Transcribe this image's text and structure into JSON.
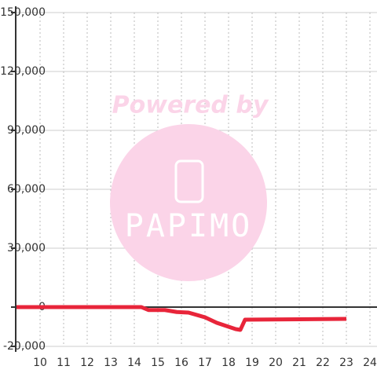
{
  "chart_data": {
    "type": "line",
    "x": [
      9,
      14.3,
      14.6,
      15.3,
      15.8,
      16.3,
      17,
      17.5,
      18,
      18.3,
      18.5,
      18.7,
      23
    ],
    "series": [
      {
        "color": "#e8253a",
        "values": [
          0,
          0,
          -1500,
          -1500,
          -2500,
          -2800,
          -5200,
          -8000,
          -10000,
          -11200,
          -11600,
          -6400,
          -6000
        ]
      }
    ],
    "xlim": [
      9,
      24.3
    ],
    "xticks": [
      10,
      11,
      12,
      13,
      14,
      15,
      16,
      17,
      18,
      19,
      20,
      21,
      22,
      23,
      24
    ],
    "ylim": [
      -20000,
      150000
    ],
    "yticks": [
      {
        "value": -20000,
        "label": "-20,000"
      },
      0,
      {
        "value": 30000,
        "label": "30,000"
      },
      {
        "value": 60000,
        "label": "60,000"
      },
      {
        "value": 90000,
        "label": "90,000"
      },
      {
        "value": 120000,
        "label": "120,000"
      },
      {
        "value": 150000,
        "label": "150,000"
      }
    ],
    "grid": true,
    "watermark": {
      "line1": "Powered by",
      "line2": "PAPIMO"
    }
  }
}
